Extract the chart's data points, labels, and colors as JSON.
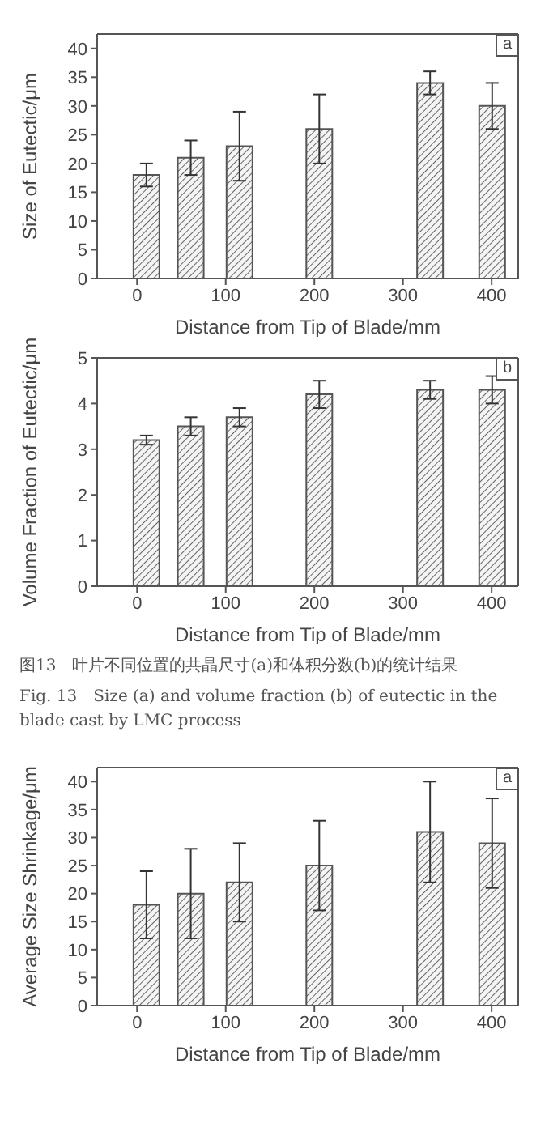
{
  "chart_data": [
    {
      "type": "bar",
      "xlabel": "Distance from Tip of Blade/mm",
      "ylabel": "Size of Eutectic/μm",
      "annotations": [
        "a"
      ],
      "x": [
        10,
        60,
        115,
        205,
        330,
        400
      ],
      "series": [
        {
          "color": "#555555",
          "values": [
            18,
            21,
            23,
            26,
            34,
            30
          ],
          "errors": [
            2,
            3,
            6,
            6,
            2,
            4
          ]
        }
      ],
      "xlim": [
        -45,
        430
      ],
      "xticks": [
        0,
        100,
        200,
        300,
        400
      ],
      "ylim": [
        0,
        42.5
      ],
      "yticks": [
        0,
        5,
        10,
        15,
        20,
        25,
        30,
        35,
        40
      ],
      "grid": false,
      "legend": false
    },
    {
      "type": "bar",
      "xlabel": "Distance from Tip of Blade/mm",
      "ylabel": "Volume Fraction of Eutectic/μm",
      "annotations": [
        "b",
        "图13　叶片不同位置的共晶尺寸(a)和体积分数(b)的统计结果",
        "Fig. 13　Size (a) and volume fraction (b) of eutectic in the blade cast by LMC process"
      ],
      "x": [
        10,
        60,
        115,
        205,
        330,
        400
      ],
      "series": [
        {
          "color": "#555555",
          "values": [
            3.2,
            3.5,
            3.7,
            4.2,
            4.3,
            4.3
          ],
          "errors": [
            0.1,
            0.2,
            0.2,
            0.3,
            0.2,
            0.3
          ]
        }
      ],
      "xlim": [
        -45,
        430
      ],
      "xticks": [
        0,
        100,
        200,
        300,
        400
      ],
      "ylim": [
        0,
        5
      ],
      "yticks": [
        0,
        1,
        2,
        3,
        4,
        5
      ],
      "grid": false,
      "legend": false
    },
    {
      "type": "bar",
      "xlabel": "Distance from Tip of Blade/mm",
      "ylabel": "Average Size Shrinkage/μm",
      "annotations": [
        "a"
      ],
      "x": [
        10,
        60,
        115,
        205,
        330,
        400
      ],
      "series": [
        {
          "color": "#555555",
          "values": [
            18,
            20,
            22,
            25,
            31,
            29
          ],
          "errors": [
            6,
            8,
            7,
            8,
            9,
            8
          ]
        }
      ],
      "xlim": [
        -45,
        430
      ],
      "xticks": [
        0,
        100,
        200,
        300,
        400
      ],
      "ylim": [
        0,
        42.5
      ],
      "yticks": [
        0,
        5,
        10,
        15,
        20,
        25,
        30,
        35,
        40
      ],
      "grid": false,
      "legend": false
    }
  ]
}
